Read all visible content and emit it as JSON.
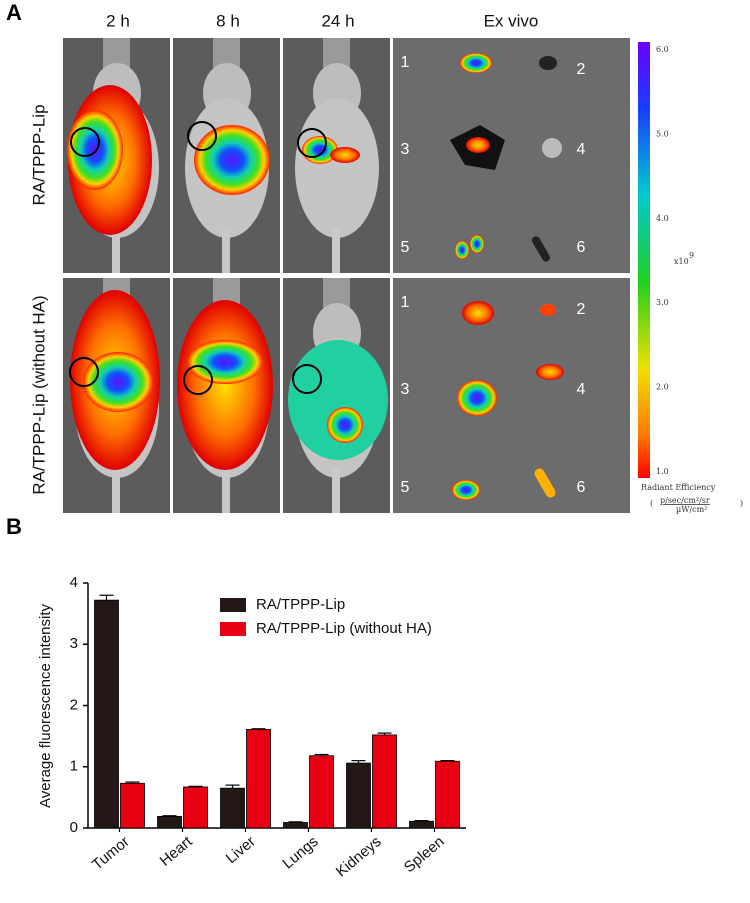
{
  "panel_a": {
    "label": "A",
    "columns": [
      "2 h",
      "8 h",
      "24 h",
      "Ex vivo"
    ],
    "rows": [
      "RA/TPPP-Lip",
      "RA/TPPP-Lip (without HA)"
    ],
    "organ_numbers": [
      "1",
      "2",
      "3",
      "4",
      "5",
      "6"
    ],
    "colorbar": {
      "ticks": [
        "6.0",
        "5.0",
        "4.0",
        "3.0",
        "2.0",
        "1.0"
      ],
      "multiplier": "x10",
      "exponent": "9",
      "title": "Radiant Efficiency",
      "unit_top": "p/sec/cm²/sr",
      "unit_bottom": "µW/cm²",
      "paren_open": "(",
      "paren_close": ")"
    }
  },
  "chart_data": {
    "type": "bar",
    "panel_label": "B",
    "y_label": "Average fluorescence intensity",
    "categories": [
      "Tumor",
      "Heart",
      "Liver",
      "Lungs",
      "Kidneys",
      "Spleen"
    ],
    "series": [
      {
        "name": "RA/TPPP-Lip",
        "color": "#231815",
        "values": [
          3.72,
          0.19,
          0.65,
          0.09,
          1.06,
          0.11
        ],
        "errors": [
          0.08,
          0.01,
          0.05,
          0.01,
          0.04,
          0.01
        ]
      },
      {
        "name": "RA/TPPP-Lip (without HA)",
        "color": "#e60012",
        "values": [
          0.73,
          0.67,
          1.61,
          1.18,
          1.52,
          1.09
        ],
        "errors": [
          0.02,
          0.01,
          0.01,
          0.02,
          0.03,
          0.01
        ]
      }
    ],
    "ylim": [
      0,
      4
    ],
    "yticks": [
      0,
      1,
      2,
      3,
      4
    ]
  }
}
